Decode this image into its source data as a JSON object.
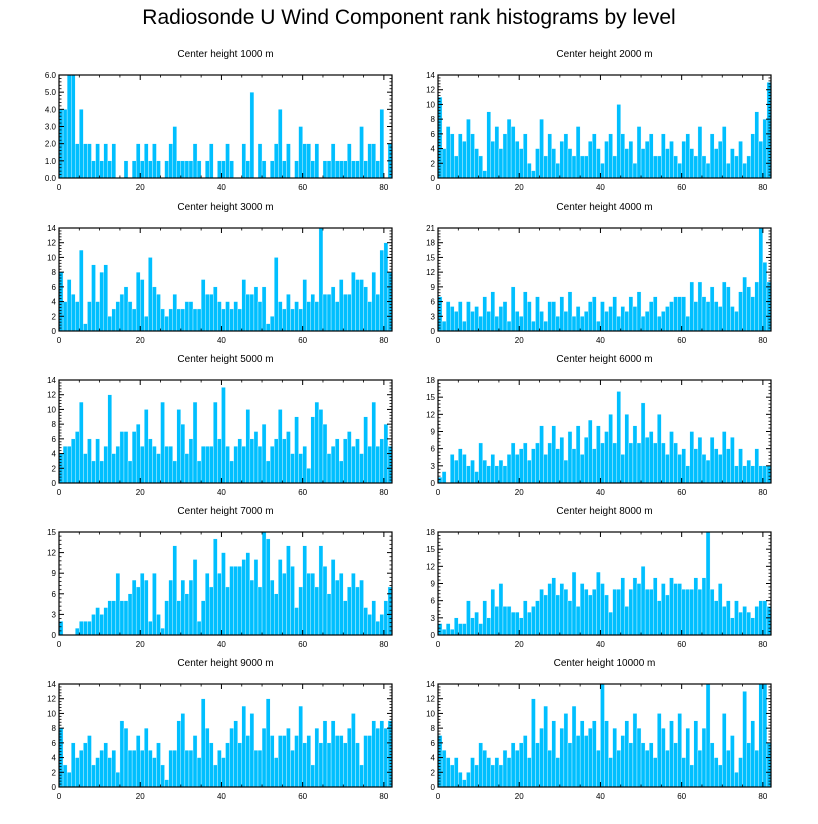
{
  "page_title": "Radiosonde U Wind Component rank histograms by level",
  "colors": {
    "bar": "#00bfff",
    "axis": "#000000",
    "background": "#ffffff"
  },
  "chart_data": [
    {
      "type": "bar",
      "title": "Center height 1000 m",
      "xlim": [
        0,
        82
      ],
      "ylim": [
        0,
        6
      ],
      "xticks": [
        0,
        20,
        40,
        60,
        80
      ],
      "xtick_labels": [
        "0",
        "20",
        "40",
        "60",
        "80"
      ],
      "yticks": [
        0,
        1,
        2,
        3,
        4,
        5,
        6
      ],
      "ytick_labels": [
        "0.0",
        "1.0",
        "2.0",
        "3.0",
        "4.0",
        "5.0",
        "6.0"
      ],
      "values": [
        4,
        4,
        6,
        6,
        2,
        4,
        2,
        2,
        1,
        2,
        1,
        2,
        1,
        2,
        0,
        0,
        1,
        0,
        1,
        2,
        1,
        2,
        1,
        2,
        1,
        0,
        1,
        2,
        3,
        1,
        1,
        1,
        1,
        2,
        1,
        0,
        1,
        2,
        0,
        1,
        1,
        2,
        1,
        0,
        0,
        2,
        1,
        5,
        0,
        2,
        1,
        0,
        1,
        2,
        4,
        1,
        2,
        0,
        1,
        3,
        2,
        2,
        1,
        2,
        0,
        1,
        1,
        2,
        1,
        1,
        1,
        2,
        1,
        1,
        3,
        1,
        2,
        2,
        1,
        4,
        0,
        2
      ]
    },
    {
      "type": "bar",
      "title": "Center height 2000 m",
      "xlim": [
        0,
        82
      ],
      "ylim": [
        0,
        14
      ],
      "xticks": [
        0,
        20,
        40,
        60,
        80
      ],
      "xtick_labels": [
        "0",
        "20",
        "40",
        "60",
        "80"
      ],
      "yticks": [
        0,
        2,
        4,
        6,
        8,
        10,
        12,
        14
      ],
      "ytick_labels": [
        "0",
        "2",
        "4",
        "6",
        "8",
        "10",
        "12",
        "14"
      ],
      "values": [
        11,
        4,
        7,
        6,
        3,
        6,
        5,
        8,
        6,
        4,
        3,
        1,
        9,
        5,
        7,
        4,
        6,
        8,
        7,
        5,
        4,
        6,
        2,
        1,
        4,
        8,
        3,
        6,
        4,
        2,
        5,
        6,
        4,
        3,
        7,
        3,
        3,
        5,
        6,
        4,
        2,
        5,
        6,
        3,
        10,
        6,
        4,
        5,
        2,
        7,
        4,
        5,
        6,
        3,
        3,
        6,
        4,
        5,
        3,
        2,
        5,
        6,
        4,
        3,
        7,
        3,
        2,
        6,
        4,
        5,
        7,
        2,
        4,
        3,
        5,
        2,
        3,
        6,
        9,
        5,
        8,
        13
      ]
    },
    {
      "type": "bar",
      "title": "Center height 3000 m",
      "xlim": [
        0,
        82
      ],
      "ylim": [
        0,
        14
      ],
      "xticks": [
        0,
        20,
        40,
        60,
        80
      ],
      "xtick_labels": [
        "0",
        "20",
        "40",
        "60",
        "80"
      ],
      "yticks": [
        0,
        2,
        4,
        6,
        8,
        10,
        12,
        14
      ],
      "ytick_labels": [
        "0",
        "2",
        "4",
        "6",
        "8",
        "10",
        "12",
        "14"
      ],
      "values": [
        8,
        4,
        7,
        5,
        4,
        11,
        1,
        4,
        9,
        4,
        8,
        9,
        2,
        3,
        4,
        5,
        6,
        4,
        3,
        8,
        7,
        2,
        10,
        6,
        5,
        3,
        2,
        3,
        5,
        3,
        3,
        4,
        4,
        3,
        3,
        7,
        5,
        5,
        6,
        4,
        3,
        4,
        3,
        4,
        3,
        7,
        5,
        5,
        6,
        4,
        6,
        1,
        2,
        10,
        4,
        3,
        5,
        3,
        4,
        3,
        7,
        4,
        5,
        4,
        14,
        5,
        5,
        6,
        4,
        7,
        5,
        5,
        8,
        7,
        7,
        6,
        4,
        8,
        5,
        11,
        12,
        8
      ]
    },
    {
      "type": "bar",
      "title": "Center height 4000 m",
      "xlim": [
        0,
        82
      ],
      "ylim": [
        0,
        21
      ],
      "xticks": [
        0,
        20,
        40,
        60,
        80
      ],
      "xtick_labels": [
        "0",
        "20",
        "40",
        "60",
        "80"
      ],
      "yticks": [
        0,
        3,
        6,
        9,
        12,
        15,
        18,
        21
      ],
      "ytick_labels": [
        "0",
        "3",
        "6",
        "9",
        "12",
        "15",
        "18",
        "21"
      ],
      "values": [
        7,
        2,
        6,
        5,
        4,
        6,
        2,
        6,
        4,
        5,
        3,
        7,
        4,
        8,
        3,
        5,
        6,
        2,
        9,
        4,
        3,
        8,
        6,
        2,
        7,
        4,
        2,
        6,
        6,
        3,
        7,
        4,
        8,
        3,
        5,
        3,
        4,
        6,
        7,
        2,
        6,
        4,
        5,
        7,
        3,
        5,
        4,
        7,
        5,
        8,
        3,
        4,
        6,
        7,
        3,
        4,
        5,
        6,
        7,
        7,
        7,
        3,
        10,
        6,
        10,
        7,
        6,
        9,
        6,
        5,
        10,
        9,
        5,
        4,
        8,
        11,
        9,
        7,
        10,
        21,
        14,
        10
      ]
    },
    {
      "type": "bar",
      "title": "Center height 5000 m",
      "xlim": [
        0,
        82
      ],
      "ylim": [
        0,
        14
      ],
      "xticks": [
        0,
        20,
        40,
        60,
        80
      ],
      "xtick_labels": [
        "0",
        "20",
        "40",
        "60",
        "80"
      ],
      "yticks": [
        0,
        2,
        4,
        6,
        8,
        10,
        12,
        14
      ],
      "ytick_labels": [
        "0",
        "2",
        "4",
        "6",
        "8",
        "10",
        "12",
        "14"
      ],
      "values": [
        4,
        5,
        5,
        6,
        7,
        11,
        4,
        6,
        3,
        6,
        3,
        5,
        12,
        4,
        5,
        7,
        7,
        3,
        7,
        8,
        5,
        10,
        6,
        5,
        4,
        11,
        5,
        5,
        3,
        10,
        8,
        4,
        6,
        11,
        3,
        5,
        5,
        5,
        11,
        6,
        13,
        5,
        3,
        5,
        6,
        5,
        10,
        6,
        7,
        5,
        8,
        3,
        5,
        6,
        10,
        6,
        7,
        4,
        9,
        4,
        5,
        2,
        9,
        11,
        10,
        8,
        4,
        5,
        6,
        3,
        6,
        7,
        5,
        6,
        4,
        9,
        5,
        11,
        5,
        6,
        8,
        5
      ]
    },
    {
      "type": "bar",
      "title": "Center height 6000 m",
      "xlim": [
        0,
        82
      ],
      "ylim": [
        0,
        18
      ],
      "xticks": [
        0,
        20,
        40,
        60,
        80
      ],
      "xtick_labels": [
        "0",
        "20",
        "40",
        "60",
        "80"
      ],
      "yticks": [
        0,
        3,
        6,
        9,
        12,
        15,
        18
      ],
      "ytick_labels": [
        "0",
        "3",
        "6",
        "9",
        "12",
        "15",
        "18"
      ],
      "values": [
        1,
        2,
        0,
        5,
        4,
        6,
        5,
        3,
        4,
        2,
        7,
        4,
        3,
        5,
        3,
        4,
        3,
        5,
        7,
        5,
        6,
        7,
        4,
        6,
        7,
        10,
        5,
        7,
        10,
        6,
        8,
        4,
        9,
        6,
        10,
        5,
        8,
        11,
        6,
        10,
        7,
        9,
        12,
        7,
        16,
        5,
        12,
        7,
        10,
        7,
        14,
        8,
        9,
        7,
        12,
        7,
        5,
        9,
        7,
        5,
        6,
        3,
        9,
        6,
        8,
        5,
        4,
        8,
        6,
        5,
        9,
        6,
        8,
        3,
        6,
        3,
        4,
        3,
        6,
        3,
        3,
        3
      ]
    },
    {
      "type": "bar",
      "title": "Center height 7000 m",
      "xlim": [
        0,
        82
      ],
      "ylim": [
        0,
        15
      ],
      "xticks": [
        0,
        20,
        40,
        60,
        80
      ],
      "xtick_labels": [
        "0",
        "20",
        "40",
        "60",
        "80"
      ],
      "yticks": [
        0,
        3,
        6,
        9,
        12,
        15
      ],
      "ytick_labels": [
        "0",
        "3",
        "6",
        "9",
        "12",
        "15"
      ],
      "values": [
        2,
        0,
        0,
        0,
        1,
        2,
        2,
        2,
        3,
        4,
        3,
        4,
        5,
        5,
        9,
        5,
        5,
        6,
        8,
        7,
        9,
        8,
        2,
        9,
        3,
        1,
        5,
        8,
        13,
        5,
        8,
        6,
        8,
        11,
        2,
        5,
        9,
        7,
        14,
        9,
        12,
        7,
        10,
        10,
        10,
        11,
        12,
        8,
        11,
        7,
        15,
        14,
        8,
        6,
        11,
        9,
        13,
        10,
        4,
        7,
        13,
        9,
        9,
        7,
        13,
        10,
        6,
        11,
        8,
        9,
        5,
        7,
        9,
        7,
        8,
        4,
        3,
        5,
        2,
        3,
        5,
        7
      ]
    },
    {
      "type": "bar",
      "title": "Center height 8000 m",
      "xlim": [
        0,
        82
      ],
      "ylim": [
        0,
        18
      ],
      "xticks": [
        0,
        20,
        40,
        60,
        80
      ],
      "xtick_labels": [
        "0",
        "20",
        "40",
        "60",
        "80"
      ],
      "yticks": [
        0,
        3,
        6,
        9,
        12,
        15,
        18
      ],
      "ytick_labels": [
        "0",
        "3",
        "6",
        "9",
        "12",
        "15",
        "18"
      ],
      "values": [
        2,
        1,
        2,
        1,
        3,
        2,
        2,
        6,
        3,
        4,
        2,
        6,
        3,
        8,
        5,
        9,
        5,
        5,
        4,
        4,
        3,
        6,
        4,
        5,
        6,
        8,
        7,
        9,
        10,
        7,
        9,
        8,
        6,
        11,
        5,
        9,
        8,
        7,
        8,
        11,
        9,
        7,
        4,
        8,
        8,
        10,
        5,
        8,
        10,
        9,
        12,
        8,
        8,
        10,
        6,
        9,
        7,
        10,
        9,
        9,
        8,
        8,
        8,
        10,
        8,
        10,
        18,
        8,
        6,
        9,
        5,
        6,
        3,
        6,
        4,
        5,
        4,
        3,
        5,
        6,
        6,
        5
      ]
    },
    {
      "type": "bar",
      "title": "Center height 9000 m",
      "xlim": [
        0,
        82
      ],
      "ylim": [
        0,
        14
      ],
      "xticks": [
        0,
        20,
        40,
        60,
        80
      ],
      "xtick_labels": [
        "0",
        "20",
        "40",
        "60",
        "80"
      ],
      "yticks": [
        0,
        2,
        4,
        6,
        8,
        10,
        12,
        14
      ],
      "ytick_labels": [
        "0",
        "2",
        "4",
        "6",
        "8",
        "10",
        "12",
        "14"
      ],
      "values": [
        8,
        3,
        2,
        6,
        4,
        5,
        6,
        7,
        3,
        4,
        5,
        6,
        4,
        5,
        2,
        9,
        8,
        5,
        5,
        7,
        5,
        8,
        5,
        4,
        6,
        3,
        1,
        5,
        5,
        9,
        10,
        5,
        5,
        7,
        4,
        12,
        8,
        6,
        3,
        5,
        4,
        6,
        8,
        9,
        6,
        11,
        7,
        10,
        5,
        5,
        8,
        12,
        7,
        4,
        7,
        7,
        8,
        5,
        7,
        11,
        6,
        7,
        3,
        8,
        6,
        9,
        6,
        9,
        7,
        7,
        6,
        8,
        10,
        6,
        3,
        7,
        7,
        9,
        8,
        9,
        8,
        9
      ]
    },
    {
      "type": "bar",
      "title": "Center height 10000 m",
      "xlim": [
        0,
        82
      ],
      "ylim": [
        0,
        14
      ],
      "xticks": [
        0,
        20,
        40,
        60,
        80
      ],
      "xtick_labels": [
        "0",
        "20",
        "40",
        "60",
        "80"
      ],
      "yticks": [
        0,
        2,
        4,
        6,
        8,
        10,
        12,
        14
      ],
      "ytick_labels": [
        "0",
        "2",
        "4",
        "6",
        "8",
        "10",
        "12",
        "14"
      ],
      "values": [
        7,
        5,
        4,
        3,
        4,
        2,
        1,
        2,
        4,
        3,
        6,
        5,
        4,
        3,
        4,
        3,
        5,
        4,
        6,
        5,
        6,
        7,
        4,
        12,
        6,
        8,
        11,
        5,
        9,
        4,
        8,
        10,
        6,
        11,
        7,
        9,
        7,
        8,
        9,
        5,
        14,
        9,
        4,
        8,
        5,
        7,
        9,
        6,
        10,
        8,
        6,
        5,
        6,
        4,
        10,
        8,
        5,
        9,
        6,
        10,
        4,
        8,
        3,
        9,
        5,
        8,
        14,
        6,
        4,
        3,
        10,
        5,
        7,
        2,
        4,
        13,
        6,
        9,
        5,
        14,
        14,
        6
      ]
    }
  ]
}
